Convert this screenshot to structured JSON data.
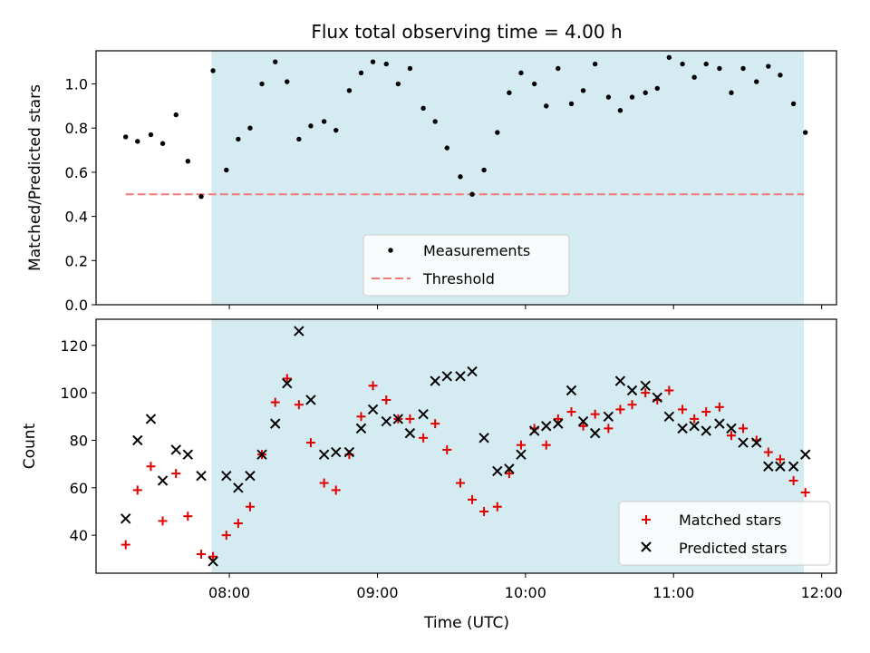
{
  "figure": {
    "title": "Flux total observing time = 4.00 h",
    "xlabel": "Time (UTC)",
    "xticks": [
      "08:00",
      "09:00",
      "10:00",
      "11:00",
      "12:00"
    ],
    "xtick_hours": [
      8,
      9,
      10,
      11,
      12
    ],
    "xlim_hours": [
      7.1,
      12.1
    ],
    "observing_window_hours": [
      7.88,
      11.88
    ],
    "window_color": "#d4ebf1"
  },
  "chart_data": [
    {
      "type": "scatter",
      "ylabel": "Matched/Predicted stars",
      "ylim": [
        0,
        1.15
      ],
      "yticks": [
        "0.0",
        "0.2",
        "0.4",
        "0.6",
        "0.8",
        "1.0"
      ],
      "ytick_values": [
        0,
        0.2,
        0.4,
        0.6,
        0.8,
        1.0
      ],
      "legend": {
        "placement": "lower-center",
        "entries": [
          "Measurements",
          "Threshold"
        ]
      },
      "threshold": {
        "value": 0.5,
        "x_range": [
          7.3,
          11.88
        ],
        "color": "#f07a7a"
      },
      "measurements": {
        "color": "#000000",
        "x": [
          7.3,
          7.38,
          7.47,
          7.55,
          7.64,
          7.72,
          7.81,
          7.89,
          7.98,
          8.06,
          8.14,
          8.22,
          8.31,
          8.39,
          8.47,
          8.55,
          8.64,
          8.72,
          8.81,
          8.89,
          8.97,
          9.06,
          9.14,
          9.22,
          9.31,
          9.39,
          9.47,
          9.56,
          9.64,
          9.72,
          9.81,
          9.89,
          9.97,
          10.06,
          10.14,
          10.22,
          10.31,
          10.39,
          10.47,
          10.56,
          10.64,
          10.72,
          10.81,
          10.89,
          10.97,
          11.06,
          11.14,
          11.22,
          11.31,
          11.39,
          11.47,
          11.56,
          11.64,
          11.72,
          11.81,
          11.89
        ],
        "y": [
          0.76,
          0.74,
          0.77,
          0.73,
          0.86,
          0.65,
          0.49,
          1.06,
          0.61,
          0.75,
          0.8,
          1.0,
          1.1,
          1.01,
          0.75,
          0.81,
          0.83,
          0.79,
          0.97,
          1.05,
          1.1,
          1.09,
          1.0,
          1.07,
          0.89,
          0.83,
          0.71,
          0.58,
          0.5,
          0.61,
          0.78,
          0.96,
          1.05,
          1.0,
          0.9,
          1.07,
          0.91,
          0.97,
          1.09,
          0.94,
          0.88,
          0.94,
          0.96,
          0.98,
          1.12,
          1.09,
          1.03,
          1.09,
          1.07,
          0.96,
          1.07,
          1.01,
          1.08,
          1.04,
          0.91,
          0.78
        ]
      }
    },
    {
      "type": "scatter",
      "ylabel": "Count",
      "ylim": [
        24,
        131
      ],
      "yticks": [
        "40",
        "60",
        "80",
        "100",
        "120"
      ],
      "ytick_values": [
        40,
        60,
        80,
        100,
        120
      ],
      "legend": {
        "placement": "lower-right",
        "entries": [
          "Matched stars",
          "Predicted stars"
        ]
      },
      "x": [
        7.3,
        7.38,
        7.47,
        7.55,
        7.64,
        7.72,
        7.81,
        7.89,
        7.98,
        8.06,
        8.14,
        8.22,
        8.31,
        8.39,
        8.47,
        8.55,
        8.64,
        8.72,
        8.81,
        8.89,
        8.97,
        9.06,
        9.14,
        9.22,
        9.31,
        9.39,
        9.47,
        9.56,
        9.64,
        9.72,
        9.81,
        9.89,
        9.97,
        10.06,
        10.14,
        10.22,
        10.31,
        10.39,
        10.47,
        10.56,
        10.64,
        10.72,
        10.81,
        10.89,
        10.97,
        11.06,
        11.14,
        11.22,
        11.31,
        11.39,
        11.47,
        11.56,
        11.64,
        11.72,
        11.81,
        11.89
      ],
      "series": [
        {
          "name": "Matched stars",
          "color": "#e00000",
          "marker": "plus",
          "values": [
            36,
            59,
            69,
            46,
            66,
            48,
            32,
            31,
            40,
            45,
            52,
            74,
            96,
            106,
            95,
            79,
            62,
            59,
            74,
            90,
            103,
            97,
            89,
            89,
            81,
            87,
            76,
            62,
            55,
            50,
            52,
            66,
            78,
            85,
            78,
            89,
            92,
            86,
            91,
            85,
            93,
            95,
            100,
            97,
            101,
            93,
            89,
            92,
            94,
            82,
            85,
            80,
            75,
            72,
            63,
            58
          ]
        },
        {
          "name": "Predicted stars",
          "color": "#000000",
          "marker": "x",
          "values": [
            47,
            80,
            89,
            63,
            76,
            74,
            65,
            29,
            65,
            60,
            65,
            74,
            87,
            104,
            126,
            97,
            74,
            75,
            75,
            85,
            93,
            88,
            89,
            83,
            91,
            105,
            107,
            107,
            109,
            81,
            67,
            68,
            74,
            84,
            86,
            87,
            101,
            88,
            83,
            90,
            105,
            101,
            103,
            98,
            90,
            85,
            86,
            84,
            87,
            85,
            79,
            79,
            69,
            69,
            69,
            74
          ]
        }
      ]
    }
  ]
}
